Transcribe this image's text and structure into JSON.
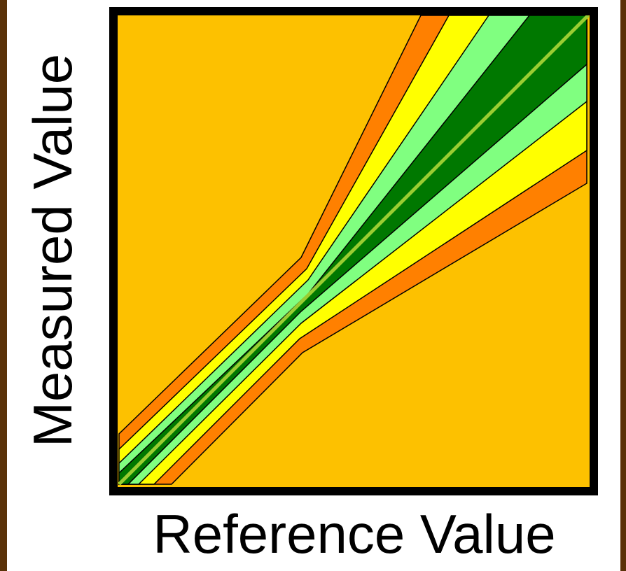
{
  "axes": {
    "x_label": "Reference Value",
    "y_label": "Measured Value"
  },
  "colors": {
    "page_border": "#5a3208",
    "background": "#ffffff",
    "frame": "#000000",
    "outside_zone": "#fdc100",
    "orange_zone": "#ff8000",
    "yellow_zone": "#ffff00",
    "light_green_zone": "#80ff80",
    "dark_green_zone": "#007800",
    "identity_line": "#9acd32"
  }
}
